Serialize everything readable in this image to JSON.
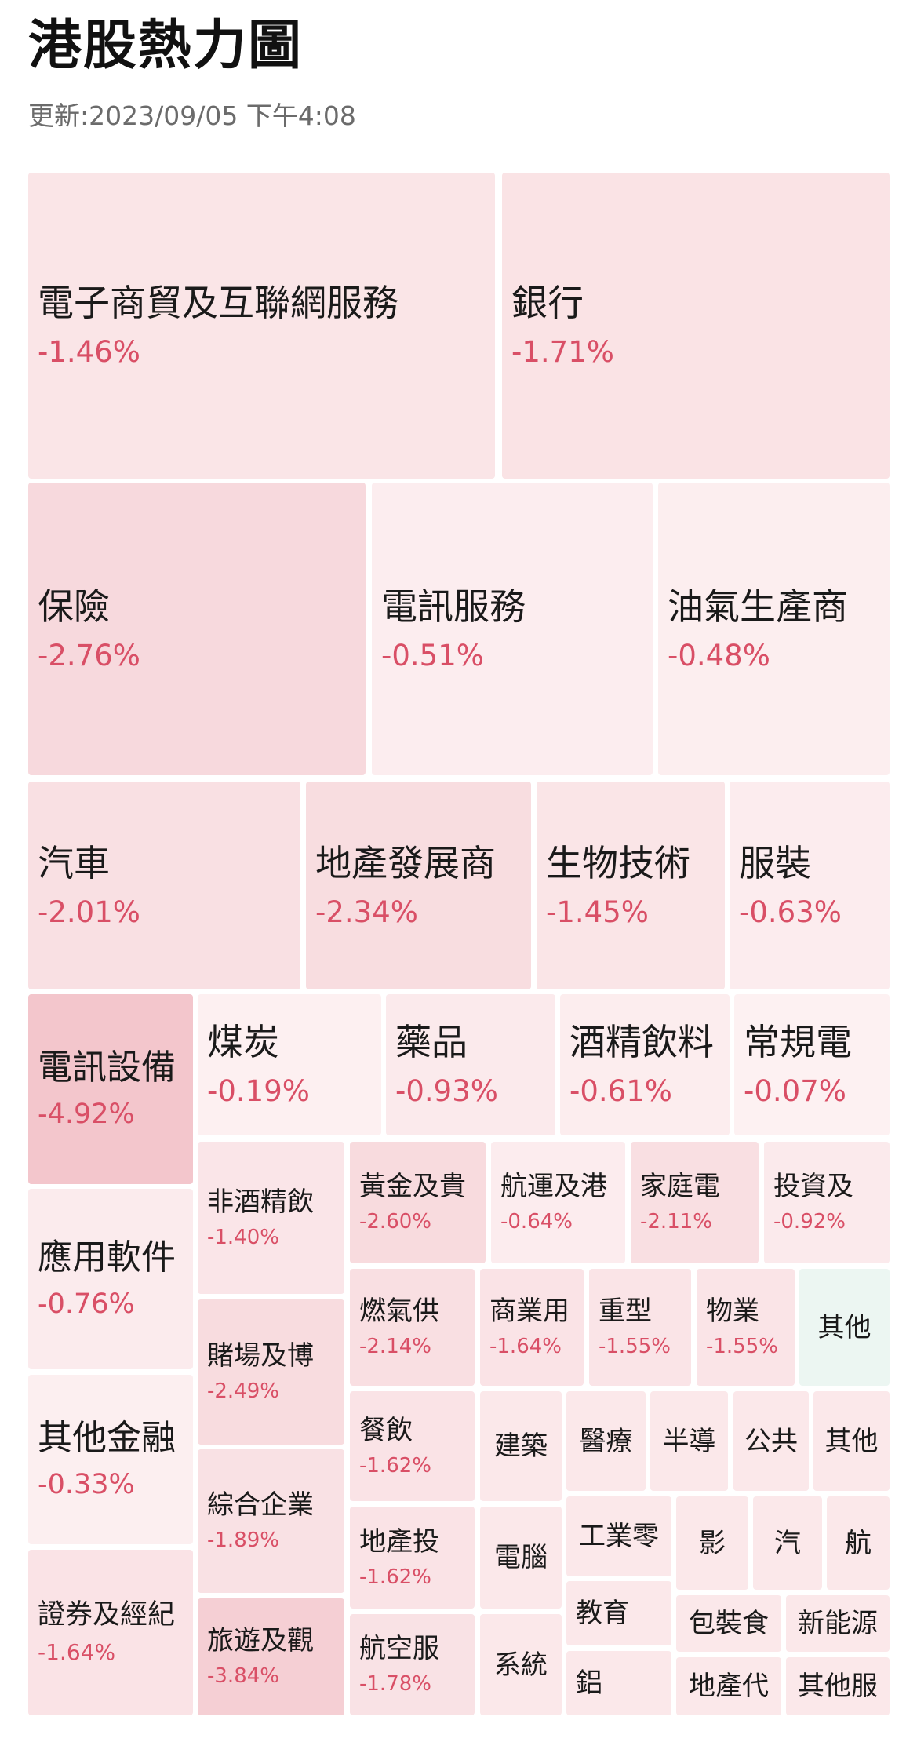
{
  "header": {
    "title": "港股熱力圖",
    "updated": "更新:2023/09/05 下午4:08"
  },
  "tiles": [
    {
      "name": "電子商貿及互聯網服務",
      "change": "-1.46%"
    },
    {
      "name": "銀行",
      "change": "-1.71%"
    },
    {
      "name": "保險",
      "change": "-2.76%"
    },
    {
      "name": "電訊服務",
      "change": "-0.51%"
    },
    {
      "name": "油氣生產商",
      "change": "-0.48%"
    },
    {
      "name": "汽車",
      "change": "-2.01%"
    },
    {
      "name": "地產發展商",
      "change": "-2.34%"
    },
    {
      "name": "生物技術",
      "change": "-1.45%"
    },
    {
      "name": "服裝",
      "change": "-0.63%"
    },
    {
      "name": "電訊設備",
      "change": "-4.92%"
    },
    {
      "name": "煤炭",
      "change": "-0.19%"
    },
    {
      "name": "藥品",
      "change": "-0.93%"
    },
    {
      "name": "酒精飲料",
      "change": "-0.61%"
    },
    {
      "name": "常規電",
      "change": "-0.07%"
    },
    {
      "name": "應用軟件",
      "change": "-0.76%"
    },
    {
      "name": "其他金融",
      "change": "-0.33%"
    },
    {
      "name": "證券及經紀",
      "change": "-1.64%"
    },
    {
      "name": "非酒精飲",
      "change": "-1.40%"
    },
    {
      "name": "賭場及博",
      "change": "-2.49%"
    },
    {
      "name": "綜合企業",
      "change": "-1.89%"
    },
    {
      "name": "旅遊及觀",
      "change": "-3.84%"
    },
    {
      "name": "黃金及貴",
      "change": "-2.60%"
    },
    {
      "name": "航運及港",
      "change": "-0.64%"
    },
    {
      "name": "家庭電",
      "change": "-2.11%"
    },
    {
      "name": "投資及",
      "change": "-0.92%"
    },
    {
      "name": "燃氣供",
      "change": "-2.14%"
    },
    {
      "name": "商業用",
      "change": "-1.64%"
    },
    {
      "name": "重型",
      "change": "-1.55%"
    },
    {
      "name": "物業",
      "change": "-1.55%"
    },
    {
      "name": "其他"
    },
    {
      "name": "餐飲",
      "change": "-1.62%"
    },
    {
      "name": "地產投",
      "change": "-1.62%"
    },
    {
      "name": "航空服",
      "change": "-1.78%"
    },
    {
      "name": "建築"
    },
    {
      "name": "電腦"
    },
    {
      "name": "系統"
    },
    {
      "name": "醫療"
    },
    {
      "name": "半導"
    },
    {
      "name": "公共"
    },
    {
      "name": "其他"
    },
    {
      "name": "工業零"
    },
    {
      "name": "教育"
    },
    {
      "name": "鋁"
    },
    {
      "name": "影"
    },
    {
      "name": "汽"
    },
    {
      "name": "航"
    },
    {
      "name": "包裝食"
    },
    {
      "name": "新能源"
    },
    {
      "name": "地產代"
    },
    {
      "name": "其他服"
    }
  ]
}
